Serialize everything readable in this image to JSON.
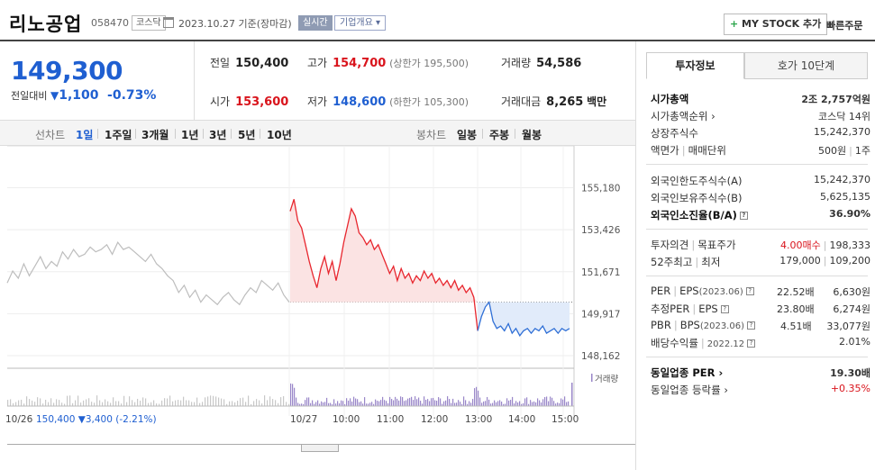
{
  "header": {
    "name": "리노공업",
    "code": "058470",
    "market": "코스닥",
    "date": "2023.10.27 기준(장마감)",
    "live": "실시간",
    "company_info": "기업개요",
    "mystock": "MY STOCK 추가",
    "quick_order": "빠른주문"
  },
  "quote": {
    "price": "149,300",
    "change_label": "전일대비",
    "change_value": "1,100",
    "change_rate": "-0.73%",
    "prev_close_label": "전일",
    "prev_close": "150,400",
    "high_label": "고가",
    "high": "154,700",
    "upper_limit": "(상한가 195,500)",
    "volume_label": "거래량",
    "volume": "54,586",
    "open_label": "시가",
    "open": "153,600",
    "low_label": "저가",
    "low": "148,600",
    "lower_limit": "(하한가 105,300)",
    "amount_label": "거래대금",
    "amount": "8,265",
    "amount_unit": "백만"
  },
  "chart_tabs": {
    "line_label": "선차트",
    "periods": [
      "1일",
      "1주일",
      "3개월",
      "1년",
      "3년",
      "5년",
      "10년"
    ],
    "active": "1일",
    "candle_label": "봉차트",
    "candles": [
      "일봉",
      "주봉",
      "월봉"
    ]
  },
  "chart_data": {
    "type": "line",
    "y_ticks": [
      "155,180",
      "153,426",
      "151,671",
      "149,917",
      "148,162"
    ],
    "y_values": [
      155180,
      153426,
      151671,
      149917,
      148162
    ],
    "ylim": [
      147900,
      155500
    ],
    "prev_close": 150400,
    "volume_label": "거래량",
    "prev_day": {
      "date": "10/26",
      "close": "150,400",
      "change": "3,400",
      "rate": "(-2.21%)",
      "values": [
        151200,
        151700,
        151400,
        152000,
        151500,
        151900,
        152300,
        151800,
        152100,
        151900,
        152500,
        152200,
        152600,
        152300,
        152400,
        152700,
        152500,
        152600,
        152800,
        152400,
        152900,
        152600,
        152700,
        152500,
        152300,
        152100,
        152400,
        152000,
        151800,
        151500,
        151300,
        150800,
        151100,
        150600,
        150900,
        150400,
        150700,
        150500,
        150300,
        150600,
        150800,
        150500,
        150300,
        150700,
        151000,
        150800,
        151300,
        151100,
        150900,
        151200,
        150700,
        150400
      ]
    },
    "today": {
      "date": "10/27",
      "x_labels": [
        "10:00",
        "11:00",
        "12:00",
        "13:00",
        "14:00",
        "15:00"
      ],
      "values": [
        154200,
        154700,
        153800,
        153500,
        152800,
        152100,
        151500,
        151000,
        151800,
        152300,
        151600,
        152100,
        151300,
        152000,
        152900,
        153600,
        154300,
        154000,
        153300,
        153100,
        152800,
        153000,
        152600,
        152800,
        152400,
        152000,
        151600,
        151900,
        151300,
        151800,
        151400,
        151600,
        151200,
        151500,
        151300,
        151700,
        151400,
        151600,
        151200,
        151400,
        151100,
        151300,
        151000,
        151300,
        150900,
        151100,
        150800,
        151000,
        150600,
        149200,
        149800,
        150200,
        150400,
        149600,
        149300,
        149400,
        149200,
        149500,
        149100,
        149300,
        149000,
        149200,
        149300,
        149100,
        149300,
        149200,
        149400,
        149100,
        149200,
        149300,
        149100,
        149300,
        149200,
        149300
      ]
    }
  },
  "panel": {
    "tab_active": "투자정보",
    "tab_other": "호가 10단계",
    "mcap_label": "시가총액",
    "mcap": "2조 2,757억원",
    "mcap_rank_label": "시가총액순위",
    "mcap_rank": "코스닥 14위",
    "shares_label": "상장주식수",
    "shares": "15,242,370",
    "par_label": "액면가",
    "unit_label": "매매단위",
    "par": "500원",
    "unit": "1주",
    "foreign_limit_label": "외국인한도주식수(A)",
    "foreign_limit": "15,242,370",
    "foreign_hold_label": "외국인보유주식수(B)",
    "foreign_hold": "5,625,135",
    "foreign_rate_label": "외국인소진율(B/A)",
    "foreign_rate": "36.90%",
    "opinion_label": "투자의견",
    "target_label": "목표주가",
    "opinion": "4.00매수",
    "target": "198,333",
    "w52_high_label": "52주최고",
    "w52_low_label": "최저",
    "w52_high": "179,000",
    "w52_low": "109,200",
    "per_label": "PER",
    "eps_label": "EPS",
    "eps_year": "(2023.06)",
    "per": "22.52배",
    "eps": "6,630원",
    "est_per_label": "추정PER",
    "est_eps_label": "EPS",
    "est_per": "23.80배",
    "est_eps": "6,274원",
    "pbr_label": "PBR",
    "bps_label": "BPS",
    "bps_year": "(2023.06)",
    "pbr": "4.51배",
    "bps": "33,077원",
    "div_label": "배당수익률",
    "div_year": "2022.12",
    "div": "2.01%",
    "ind_per_label": "동일업종 PER",
    "ind_per": "19.30배",
    "ind_rate_label": "동일업종 등락률",
    "ind_rate": "+0.35%"
  }
}
